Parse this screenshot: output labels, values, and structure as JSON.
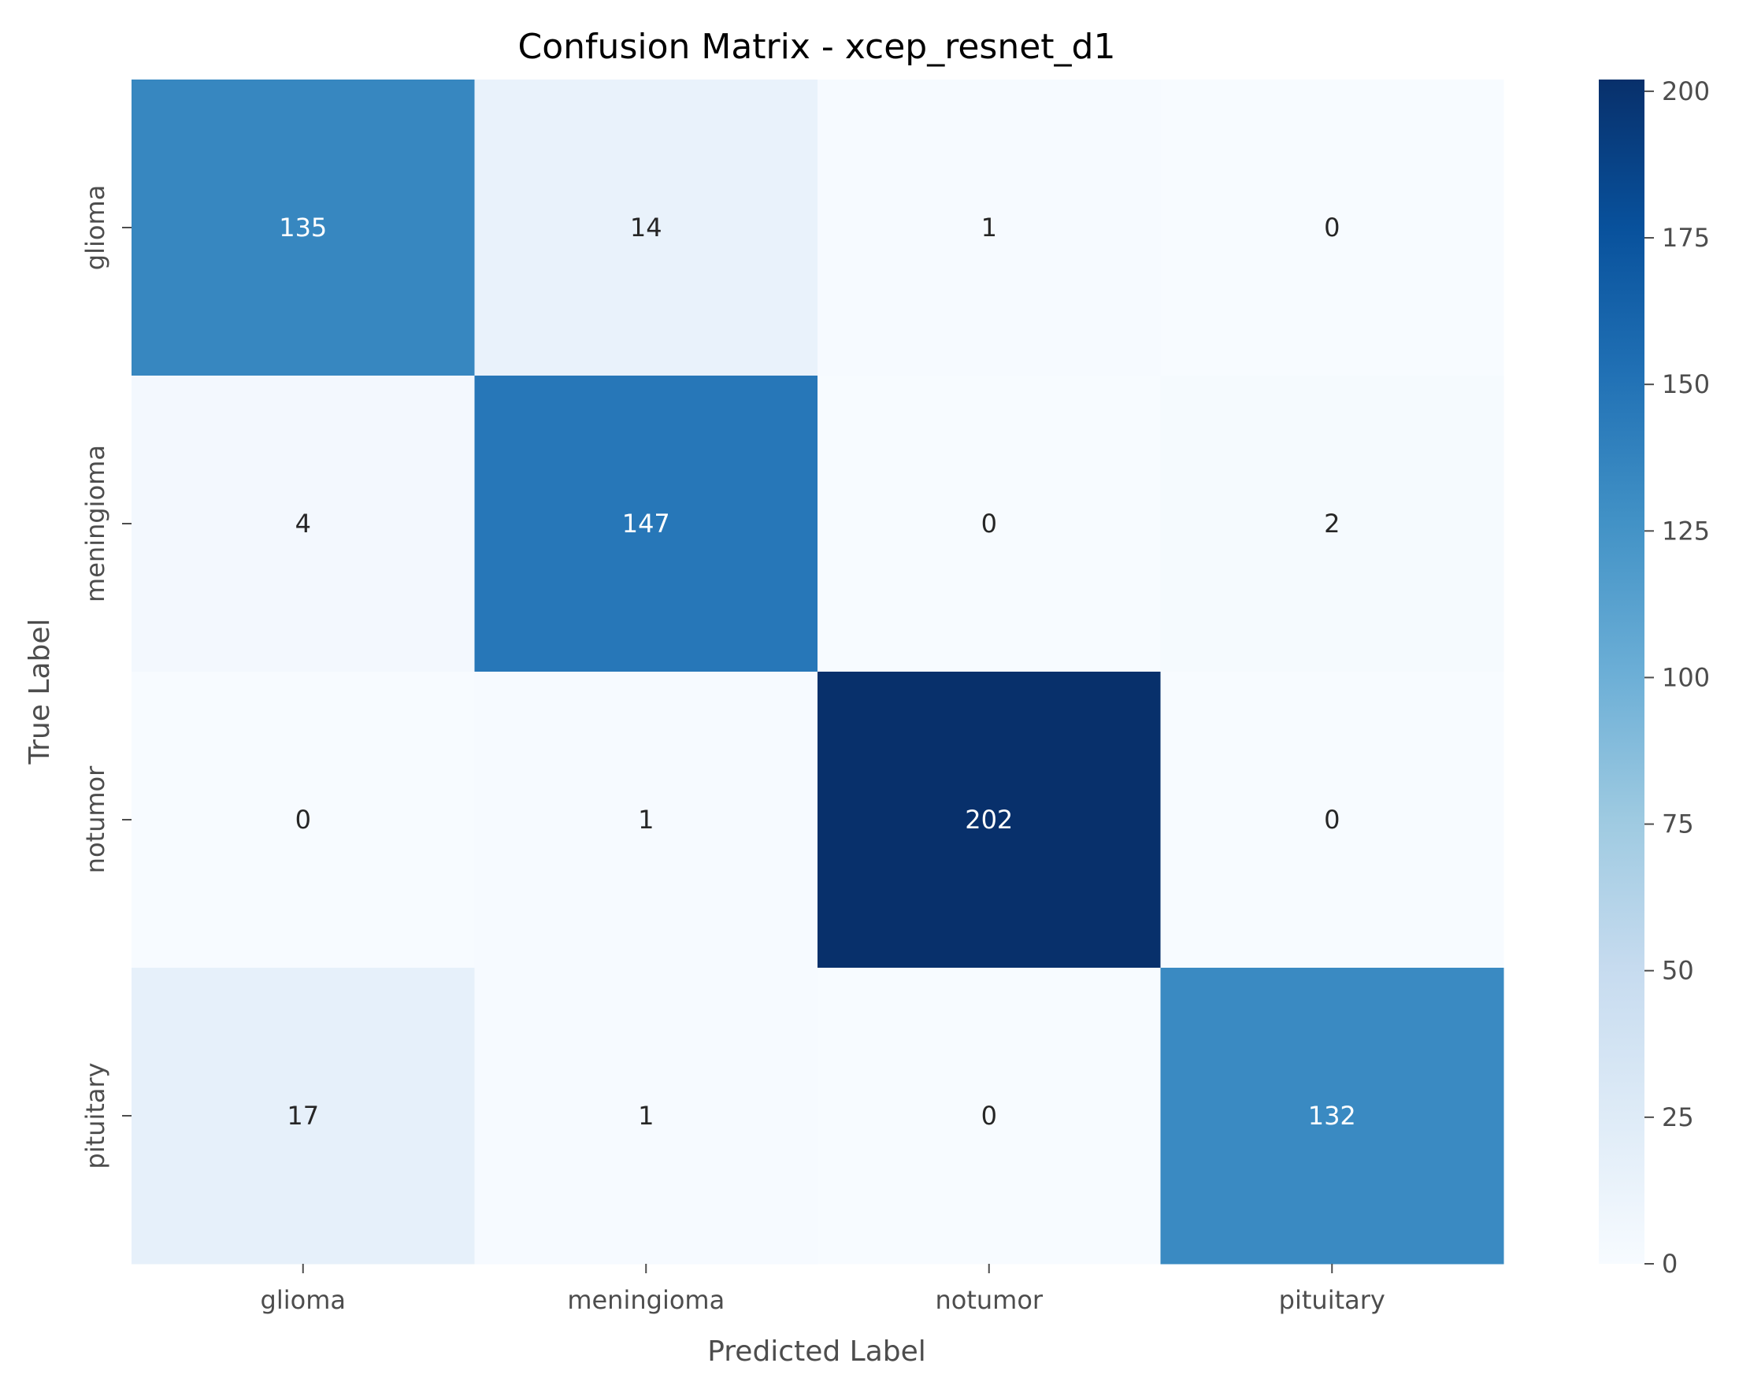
{
  "chart_data": {
    "type": "heatmap",
    "title": "Confusion Matrix - xcep_resnet_d1",
    "xlabel": "Predicted Label",
    "ylabel": "True Label",
    "x_categories": [
      "glioma",
      "meningioma",
      "notumor",
      "pituitary"
    ],
    "y_categories": [
      "glioma",
      "meningioma",
      "notumor",
      "pituitary"
    ],
    "matrix": [
      [
        135,
        14,
        1,
        0
      ],
      [
        4,
        147,
        0,
        2
      ],
      [
        0,
        1,
        202,
        0
      ],
      [
        17,
        1,
        0,
        132
      ]
    ],
    "colorbar": {
      "range": [
        0,
        202
      ],
      "ticks": [
        0,
        25,
        50,
        75,
        100,
        125,
        150,
        175,
        200
      ],
      "colormap": "Blues"
    },
    "colors": {
      "low": "#f7fbff",
      "high": "#08306b",
      "text_dark": "#262626",
      "text_light": "#ffffff"
    }
  }
}
